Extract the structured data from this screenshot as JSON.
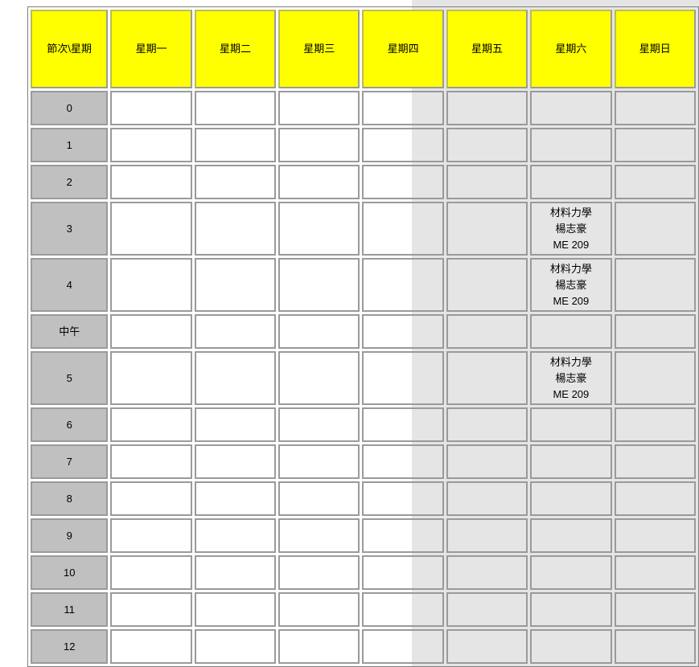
{
  "header": {
    "corner": "節次\\星期",
    "days": [
      "星期一",
      "星期二",
      "星期三",
      "星期四",
      "星期五",
      "星期六",
      "星期日"
    ]
  },
  "periods": [
    "0",
    "1",
    "2",
    "3",
    "4",
    "中午",
    "5",
    "6",
    "7",
    "8",
    "9",
    "10",
    "11",
    "12"
  ],
  "courses": {
    "p3_sat": {
      "name": "材料力學",
      "teacher": "楊志豪",
      "room": "ME 209"
    },
    "p4_sat": {
      "name": "材料力學",
      "teacher": "楊志豪",
      "room": "ME 209"
    },
    "p5_sat": {
      "name": "材料力學",
      "teacher": "楊志豪",
      "room": "ME 209"
    }
  }
}
